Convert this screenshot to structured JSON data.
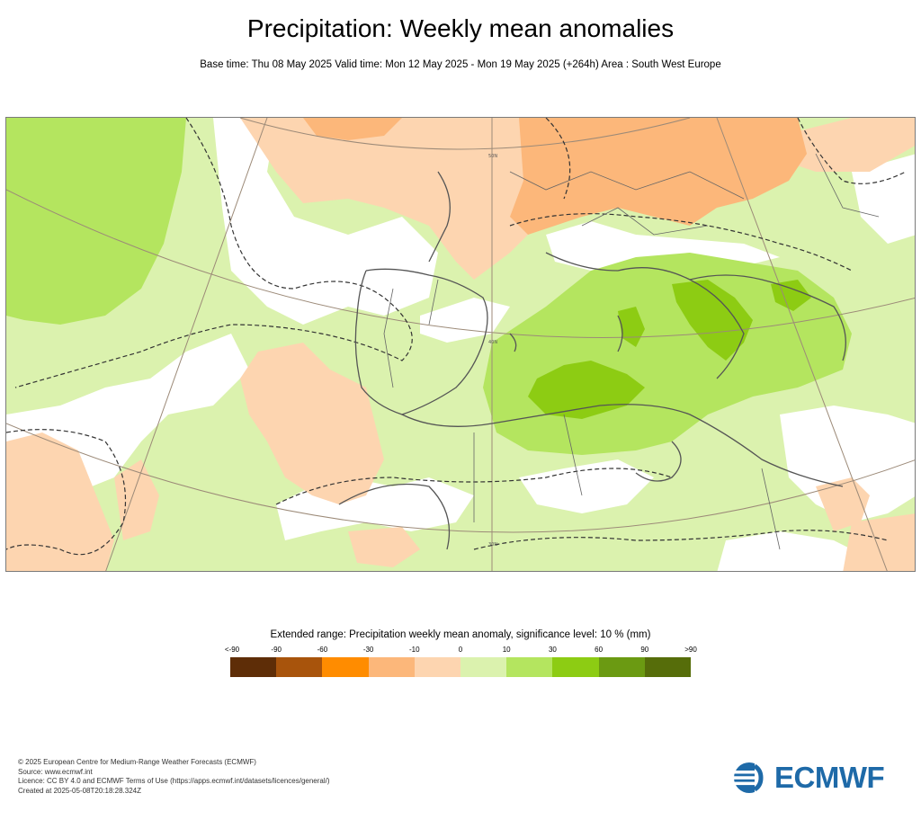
{
  "title": "Precipitation: Weekly mean anomalies",
  "subtitle": "Base time: Thu 08 May 2025 Valid time: Mon 12 May 2025 - Mon 19 May 2025 (+264h) Area : South West Europe",
  "map": {
    "area": "South West Europe",
    "grid_labels": [
      "50N",
      "40N",
      "30N"
    ],
    "shading": "precipitation weekly mean anomaly (mm); dashed contours mark significance"
  },
  "legend": {
    "title": "Extended range: Precipitation weekly mean anomaly, significance level: 10 % (mm)",
    "ticks": [
      "<-90",
      "-90",
      "-60",
      "-30",
      "-10",
      "0",
      "10",
      "30",
      "60",
      "90",
      ">90"
    ],
    "colors": [
      "#5e2d07",
      "#a8540c",
      "#ff8c00",
      "#fcb77a",
      "#fdd5b0",
      "#dbf2ae",
      "#b4e55f",
      "#8dcc13",
      "#6b9a12",
      "#566d0a"
    ]
  },
  "footer": {
    "lines": [
      "© 2025 European Centre for Medium-Range Weather Forecasts (ECMWF)",
      "Source: www.ecmwf.int",
      "Licence: CC BY 4.0 and ECMWF Terms of Use (https://apps.ecmwf.int/datasets/licences/general/)",
      "Created at 2025-05-08T20:18:28.324Z"
    ]
  },
  "logo": {
    "text": "ECMWF",
    "color": "#1e6aa8"
  }
}
